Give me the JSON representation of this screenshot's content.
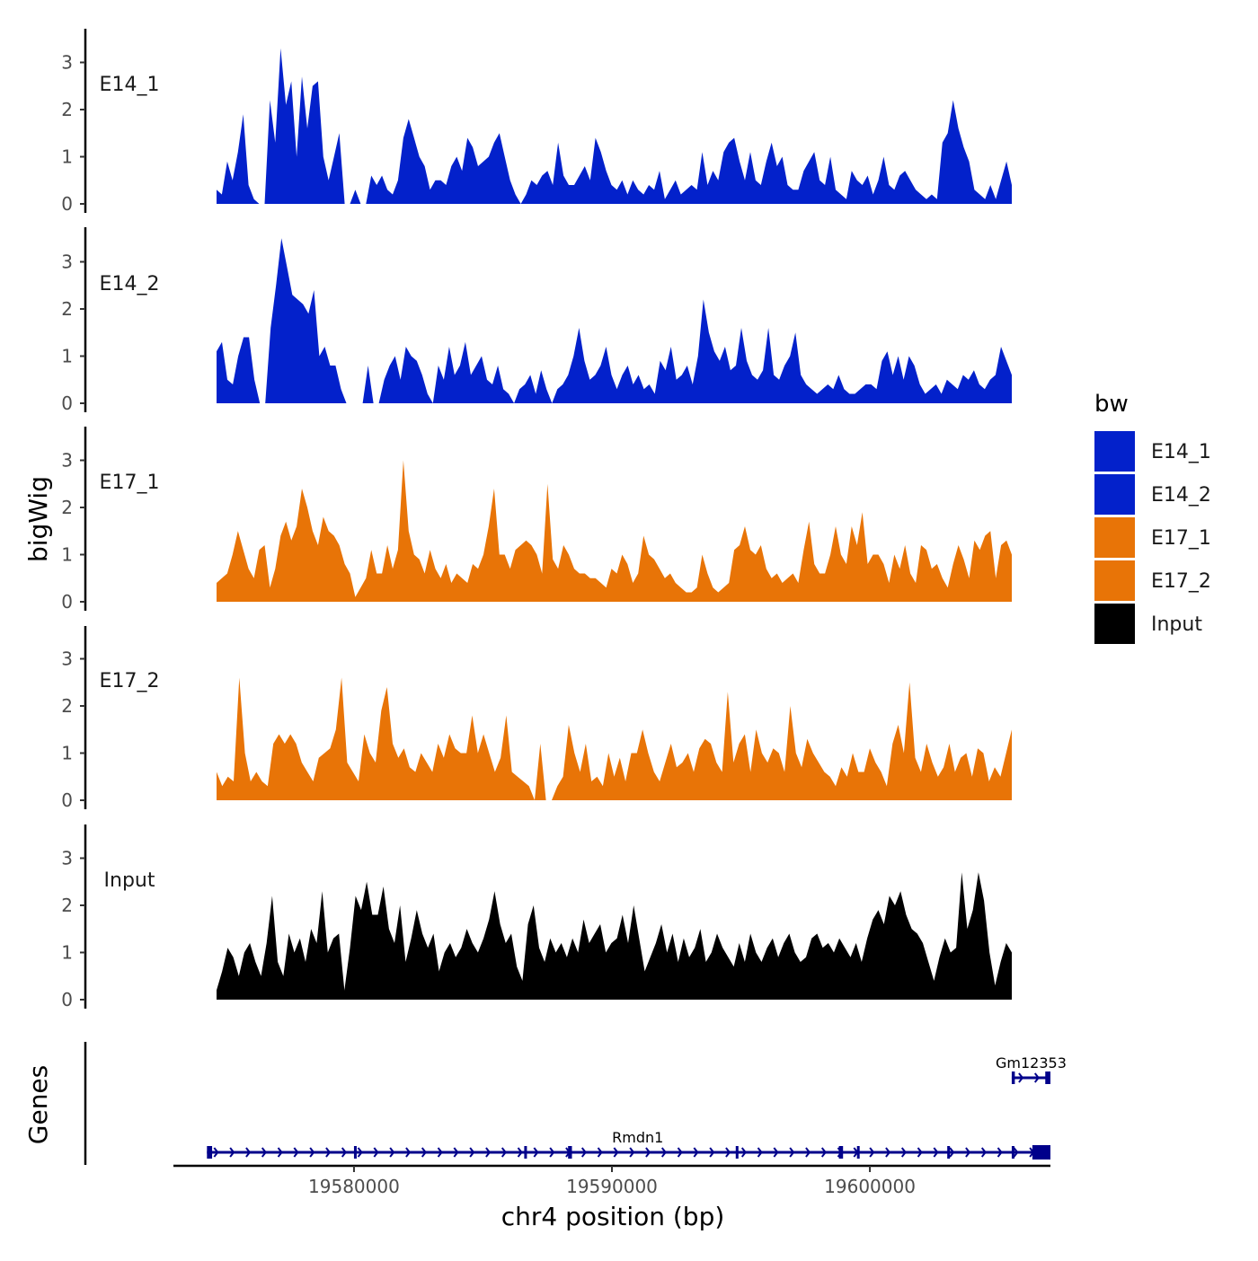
{
  "chart_data": {
    "type": "area",
    "title": "",
    "xlabel": "chr4 position (bp)",
    "ylabel": "bigWig",
    "genes_label": "Genes",
    "x_range": [
      19573000,
      19607000
    ],
    "x_ticks": [
      {
        "value": 19580000,
        "label": "19580000"
      },
      {
        "value": 19590000,
        "label": "19590000"
      },
      {
        "value": 19600000,
        "label": "19600000"
      }
    ],
    "y_range": [
      0,
      3.7
    ],
    "y_ticks": [
      {
        "value": 0,
        "label": "0"
      },
      {
        "value": 1,
        "label": "1"
      },
      {
        "value": 2,
        "label": "2"
      },
      {
        "value": 3,
        "label": "3"
      }
    ],
    "legend": {
      "title": "bw",
      "items": [
        {
          "label": "E14_1",
          "color": "#0321CB"
        },
        {
          "label": "E14_2",
          "color": "#0321CB"
        },
        {
          "label": "E17_1",
          "color": "#E87407"
        },
        {
          "label": "E17_2",
          "color": "#E87407"
        },
        {
          "label": "Input",
          "color": "#000000"
        }
      ]
    },
    "series": [
      {
        "name": "E14_1",
        "color": "#0321CB",
        "values": [
          0.3,
          0.2,
          0.9,
          0.5,
          1.1,
          1.9,
          0.4,
          0.1,
          0,
          0,
          2.2,
          1.3,
          3.3,
          2.1,
          2.6,
          1.0,
          2.7,
          1.6,
          2.5,
          2.6,
          1.0,
          0.5,
          1.0,
          1.5,
          0,
          0,
          0.3,
          0,
          0,
          0.6,
          0.4,
          0.6,
          0.3,
          0.2,
          0.5,
          1.4,
          1.8,
          1.4,
          1.0,
          0.8,
          0.3,
          0.5,
          0.5,
          0.4,
          0.8,
          1.0,
          0.7,
          1.4,
          1.2,
          0.8,
          0.9,
          1.0,
          1.3,
          1.5,
          1.0,
          0.5,
          0.2,
          0,
          0.2,
          0.5,
          0.4,
          0.6,
          0.7,
          0.4,
          1.3,
          0.6,
          0.4,
          0.4,
          0.6,
          0.8,
          0.5,
          1.4,
          1.1,
          0.7,
          0.4,
          0.3,
          0.5,
          0.2,
          0.5,
          0.3,
          0.2,
          0.4,
          0.3,
          0.7,
          0.1,
          0.3,
          0.5,
          0.2,
          0.3,
          0.4,
          0.3,
          1.1,
          0.4,
          0.7,
          0.5,
          1.1,
          1.3,
          1.4,
          0.9,
          0.5,
          1.1,
          0.5,
          0.4,
          0.9,
          1.3,
          0.8,
          1.0,
          0.4,
          0.3,
          0.3,
          0.7,
          0.9,
          1.1,
          0.5,
          0.4,
          1.0,
          0.3,
          0.2,
          0.1,
          0.7,
          0.5,
          0.4,
          0.6,
          0.2,
          0.5,
          1.0,
          0.4,
          0.3,
          0.6,
          0.7,
          0.5,
          0.3,
          0.2,
          0.1,
          0.2,
          0.1,
          1.3,
          1.5,
          2.2,
          1.6,
          1.2,
          0.9,
          0.3,
          0.2,
          0.1,
          0.4,
          0.1,
          0.5,
          0.9,
          0.4
        ]
      },
      {
        "name": "E14_2",
        "color": "#0321CB",
        "values": [
          1.1,
          1.3,
          0.5,
          0.4,
          1.0,
          1.4,
          1.4,
          0.5,
          0,
          0,
          1.6,
          2.5,
          3.5,
          2.9,
          2.3,
          2.2,
          2.1,
          1.9,
          2.4,
          1.0,
          1.2,
          0.8,
          0.8,
          0.3,
          0,
          0,
          0,
          0,
          0.8,
          0,
          0,
          0.5,
          0.8,
          1.0,
          0.5,
          1.2,
          1.0,
          0.9,
          0.6,
          0.2,
          0,
          0.8,
          0.5,
          1.2,
          0.6,
          0.8,
          1.3,
          0.6,
          0.8,
          1.0,
          0.5,
          0.4,
          0.8,
          0.3,
          0.2,
          0,
          0.3,
          0.4,
          0.6,
          0.2,
          0.7,
          0.3,
          0,
          0.3,
          0.4,
          0.6,
          1.0,
          1.6,
          0.9,
          0.5,
          0.6,
          0.8,
          1.2,
          0.6,
          0.3,
          0.6,
          0.8,
          0.4,
          0.6,
          0.3,
          0.4,
          0.2,
          0.9,
          0.7,
          1.2,
          0.5,
          0.6,
          0.8,
          0.4,
          1.0,
          2.2,
          1.5,
          1.1,
          0.9,
          1.2,
          0.7,
          0.8,
          1.6,
          0.9,
          0.6,
          0.5,
          0.7,
          1.6,
          0.6,
          0.5,
          0.8,
          1.0,
          1.5,
          0.6,
          0.4,
          0.3,
          0.2,
          0.3,
          0.4,
          0.3,
          0.6,
          0.3,
          0.2,
          0.2,
          0.3,
          0.4,
          0.4,
          0.3,
          0.9,
          1.1,
          0.6,
          1.0,
          0.5,
          1.0,
          0.8,
          0.4,
          0.2,
          0.3,
          0.4,
          0.2,
          0.5,
          0.4,
          0.3,
          0.6,
          0.5,
          0.7,
          0.4,
          0.3,
          0.5,
          0.6,
          1.2,
          0.9,
          0.6
        ]
      },
      {
        "name": "E17_1",
        "color": "#E87407",
        "values": [
          0.4,
          0.5,
          0.6,
          1.0,
          1.5,
          1.1,
          0.7,
          0.5,
          1.1,
          1.2,
          0.3,
          0.7,
          1.4,
          1.7,
          1.3,
          1.6,
          2.4,
          2.0,
          1.5,
          1.2,
          1.8,
          1.5,
          1.4,
          1.2,
          0.8,
          0.6,
          0.1,
          0.3,
          0.5,
          1.1,
          0.6,
          0.6,
          1.2,
          0.7,
          1.1,
          3.0,
          1.5,
          1.0,
          0.9,
          0.6,
          1.1,
          0.7,
          0.5,
          0.8,
          0.4,
          0.6,
          0.5,
          0.4,
          0.8,
          0.7,
          1.0,
          1.6,
          2.4,
          1.0,
          1.0,
          0.7,
          1.1,
          1.2,
          1.3,
          1.2,
          1.0,
          0.6,
          2.5,
          0.9,
          0.7,
          1.2,
          1.0,
          0.7,
          0.6,
          0.6,
          0.5,
          0.5,
          0.4,
          0.3,
          0.7,
          0.6,
          1.0,
          0.8,
          0.4,
          0.6,
          1.4,
          1.0,
          0.9,
          0.7,
          0.5,
          0.6,
          0.4,
          0.3,
          0.2,
          0.2,
          0.3,
          1.0,
          0.6,
          0.3,
          0.2,
          0.3,
          0.4,
          1.1,
          1.2,
          1.6,
          1.1,
          1.0,
          1.2,
          0.7,
          0.5,
          0.6,
          0.4,
          0.5,
          0.6,
          0.4,
          1.1,
          1.7,
          0.8,
          0.6,
          0.6,
          1.0,
          1.6,
          1.0,
          0.8,
          1.6,
          1.2,
          1.9,
          0.8,
          1.0,
          1.0,
          0.8,
          0.4,
          1.0,
          0.7,
          1.2,
          0.6,
          0.4,
          1.2,
          1.1,
          0.7,
          0.8,
          0.5,
          0.3,
          0.8,
          1.2,
          0.9,
          0.5,
          1.3,
          1.1,
          1.4,
          1.5,
          0.5,
          1.2,
          1.3,
          1.0
        ]
      },
      {
        "name": "E17_2",
        "color": "#E87407",
        "values": [
          0.6,
          0.3,
          0.5,
          0.4,
          2.6,
          1.0,
          0.4,
          0.6,
          0.4,
          0.3,
          1.2,
          1.4,
          1.2,
          1.4,
          1.2,
          0.8,
          0.6,
          0.4,
          0.9,
          1.0,
          1.1,
          1.5,
          2.6,
          0.8,
          0.6,
          0.4,
          1.4,
          1.0,
          0.8,
          1.9,
          2.4,
          1.2,
          0.9,
          1.1,
          0.7,
          0.6,
          1.0,
          0.8,
          0.6,
          1.2,
          0.9,
          1.4,
          1.1,
          1.0,
          1.0,
          1.8,
          1.0,
          1.4,
          1.0,
          0.6,
          0.9,
          1.8,
          0.6,
          0.5,
          0.4,
          0.3,
          0,
          1.2,
          0,
          0,
          0.3,
          0.5,
          1.6,
          1.0,
          0.6,
          1.2,
          0.4,
          0.5,
          0.3,
          1.0,
          0.5,
          0.9,
          0.4,
          1.0,
          1.0,
          1.5,
          1.0,
          0.6,
          0.4,
          0.8,
          1.2,
          0.7,
          0.8,
          1.0,
          0.6,
          1.1,
          1.3,
          1.2,
          0.8,
          0.6,
          2.3,
          0.8,
          1.2,
          1.4,
          0.6,
          1.5,
          1.0,
          0.8,
          1.1,
          1.0,
          0.6,
          2.0,
          1.0,
          0.7,
          1.3,
          1.0,
          0.8,
          0.6,
          0.5,
          0.3,
          0.7,
          0.5,
          1.0,
          0.6,
          0.6,
          1.1,
          0.8,
          0.6,
          0.3,
          1.2,
          1.6,
          1.0,
          2.5,
          0.9,
          0.6,
          1.2,
          0.8,
          0.5,
          0.7,
          1.2,
          0.6,
          0.9,
          1.0,
          0.5,
          1.1,
          1.0,
          0.4,
          0.7,
          0.5,
          1.0,
          1.5
        ]
      },
      {
        "name": "Input",
        "color": "#000000",
        "values": [
          0.2,
          0.6,
          1.1,
          0.9,
          0.5,
          1.0,
          1.2,
          0.8,
          0.5,
          1.2,
          2.2,
          0.8,
          0.5,
          1.4,
          1.0,
          1.3,
          0.8,
          1.5,
          1.2,
          2.3,
          1.0,
          1.3,
          1.4,
          0.2,
          1.1,
          2.2,
          1.9,
          2.5,
          1.8,
          1.8,
          2.4,
          1.5,
          1.2,
          2.0,
          0.8,
          1.3,
          1.9,
          1.4,
          1.1,
          1.4,
          0.6,
          1.0,
          1.2,
          0.9,
          1.1,
          1.5,
          1.2,
          1.0,
          1.3,
          1.7,
          2.3,
          1.6,
          1.2,
          1.4,
          0.7,
          0.4,
          1.6,
          2.0,
          1.1,
          0.8,
          1.3,
          1.0,
          1.2,
          0.9,
          1.3,
          1.0,
          1.7,
          1.2,
          1.4,
          1.6,
          1.0,
          1.2,
          1.3,
          1.8,
          1.2,
          2.0,
          1.3,
          0.6,
          0.9,
          1.2,
          1.6,
          1.0,
          1.4,
          0.8,
          1.3,
          0.9,
          1.1,
          1.5,
          0.8,
          1.0,
          1.4,
          1.1,
          0.9,
          0.7,
          1.2,
          0.8,
          1.4,
          1.0,
          0.8,
          1.1,
          1.3,
          0.9,
          1.2,
          1.4,
          1.0,
          0.8,
          0.9,
          1.3,
          1.4,
          1.1,
          1.2,
          1.0,
          1.3,
          1.1,
          0.9,
          1.2,
          0.8,
          1.3,
          1.7,
          1.9,
          1.6,
          2.2,
          2.0,
          2.3,
          1.8,
          1.5,
          1.4,
          1.2,
          0.8,
          0.4,
          0.9,
          1.3,
          1.0,
          1.1,
          2.7,
          1.5,
          1.9,
          2.7,
          2.1,
          1.0,
          0.3,
          0.8,
          1.2,
          1.0
        ]
      }
    ],
    "genes": [
      {
        "name": "Gm12353",
        "strand": "+",
        "start": 19605500,
        "end": 19607000,
        "row": 1,
        "exons": [
          {
            "start": 19605500,
            "end": 19605620
          },
          {
            "start": 19606800,
            "end": 19607000
          }
        ]
      },
      {
        "name": "Rmdn1",
        "strand": "+",
        "start": 19574300,
        "end": 19607000,
        "row": 2,
        "exons": [
          {
            "start": 19574300,
            "end": 19574500
          },
          {
            "start": 19580000,
            "end": 19580080
          },
          {
            "start": 19586600,
            "end": 19586680
          },
          {
            "start": 19588300,
            "end": 19588450
          },
          {
            "start": 19594800,
            "end": 19594880
          },
          {
            "start": 19598800,
            "end": 19598960
          },
          {
            "start": 19599500,
            "end": 19599560
          },
          {
            "start": 19603000,
            "end": 19603070
          },
          {
            "start": 19605500,
            "end": 19605580
          },
          {
            "start": 19606300,
            "end": 19607000
          }
        ]
      }
    ]
  }
}
